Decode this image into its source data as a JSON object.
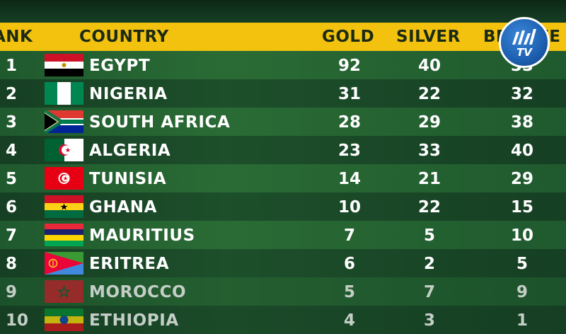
{
  "header": {
    "rank": "ANK",
    "country": "COUNTRY",
    "gold": "GOLD",
    "silver": "SILVER",
    "bronze": "BRONZE"
  },
  "rows": [
    {
      "rank": "1",
      "country": "EGYPT",
      "gold": "92",
      "silver": "40",
      "bronze": "33",
      "flag": "egypt-flag-icon"
    },
    {
      "rank": "2",
      "country": "NIGERIA",
      "gold": "31",
      "silver": "22",
      "bronze": "32",
      "flag": "nigeria-flag-icon"
    },
    {
      "rank": "3",
      "country": "SOUTH AFRICA",
      "gold": "28",
      "silver": "29",
      "bronze": "38",
      "flag": "south-africa-flag-icon"
    },
    {
      "rank": "4",
      "country": "ALGERIA",
      "gold": "23",
      "silver": "33",
      "bronze": "40",
      "flag": "algeria-flag-icon"
    },
    {
      "rank": "5",
      "country": "TUNISIA",
      "gold": "14",
      "silver": "21",
      "bronze": "29",
      "flag": "tunisia-flag-icon"
    },
    {
      "rank": "6",
      "country": "GHANA",
      "gold": "10",
      "silver": "22",
      "bronze": "15",
      "flag": "ghana-flag-icon"
    },
    {
      "rank": "7",
      "country": "MAURITIUS",
      "gold": "7",
      "silver": "5",
      "bronze": "10",
      "flag": "mauritius-flag-icon"
    },
    {
      "rank": "8",
      "country": "ERITREA",
      "gold": "6",
      "silver": "2",
      "bronze": "5",
      "flag": "eritrea-flag-icon"
    },
    {
      "rank": "9",
      "country": "MOROCCO",
      "gold": "5",
      "silver": "7",
      "bronze": "9",
      "flag": "morocco-flag-icon"
    },
    {
      "rank": "10",
      "country": "ETHIOPIA",
      "gold": "4",
      "silver": "3",
      "bronze": "1",
      "flag": "ethiopia-flag-icon"
    }
  ],
  "logo": {
    "icon": "channel-logo-icon",
    "text": "TV"
  },
  "colors": {
    "header": "#f2c20f",
    "row_light": "#2a6b35",
    "row_dark": "#163f23",
    "logo": "#1d5fb0"
  }
}
